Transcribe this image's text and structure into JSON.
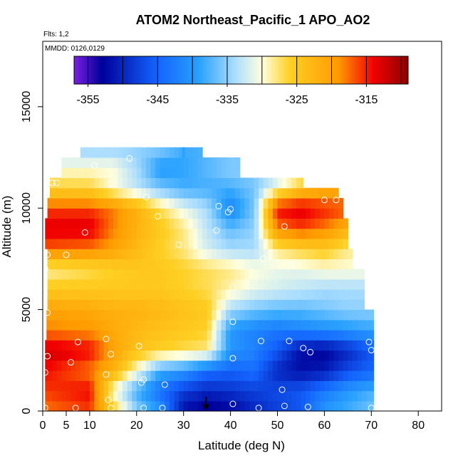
{
  "chart_data": {
    "type": "heatmap",
    "title": "ATOM2 Northeast_Pacific_1 APO_AO2",
    "flights_label": "Flts: 1,2",
    "dates_label": "MMDD: 0126,0129",
    "xlabel": "Latitude (deg N)",
    "ylabel": "Altitude (m)",
    "xlim": [
      0,
      85
    ],
    "ylim": [
      0,
      18500
    ],
    "x_ticks": [
      0,
      5,
      10,
      20,
      30,
      40,
      50,
      60,
      70,
      80
    ],
    "y_ticks": [
      0,
      5000,
      10000,
      15000
    ],
    "colorbar": {
      "range": [
        -357,
        -309
      ],
      "ticks": [
        -355,
        -345,
        -335,
        -325,
        -315
      ]
    },
    "colors": {
      "c0": "#7a1fe0",
      "c1": "#00009a",
      "c2": "#1464ff",
      "c3": "#2aa2ff",
      "c4": "#a8dcff",
      "c5": "#ffffe0",
      "c6": "#ffd024",
      "c7": "#ff9a00",
      "c8": "#f20000",
      "c9": "#8b0000"
    },
    "envelope": [
      {
        "alt": 0,
        "lat_min": 0.5,
        "lat_max": 70.5
      },
      {
        "alt": 3500,
        "lat_min": 0.8,
        "lat_max": 70.5
      },
      {
        "alt": 5000,
        "lat_min": 1.0,
        "lat_max": 68.5
      },
      {
        "alt": 7000,
        "lat_min": 1.0,
        "lat_max": 66.0
      },
      {
        "alt": 8000,
        "lat_min": 0.5,
        "lat_max": 65.0
      },
      {
        "alt": 9500,
        "lat_min": 1.0,
        "lat_max": 64.0
      },
      {
        "alt": 10500,
        "lat_min": 1.5,
        "lat_max": 63.0
      },
      {
        "alt": 11000,
        "lat_min": 1.5,
        "lat_max": 55.5
      },
      {
        "alt": 11500,
        "lat_min": 4.0,
        "lat_max": 42.0
      },
      {
        "alt": 12500,
        "lat_min": 8.0,
        "lat_max": 34.0
      }
    ],
    "value_field": [
      {
        "alt": 0,
        "lats": [
          0,
          10,
          15,
          20,
          25,
          30,
          35,
          40,
          45,
          50,
          55,
          60,
          65,
          70
        ],
        "vals": [
          -318,
          -316,
          -325,
          -335,
          -340,
          -352,
          -354,
          -353,
          -350,
          -348,
          -346,
          -340,
          -338,
          -336
        ]
      },
      {
        "alt": 1000,
        "lats": [
          0,
          10,
          15,
          20,
          25,
          30,
          35,
          40,
          45,
          50,
          55,
          60,
          65,
          70
        ],
        "vals": [
          -316,
          -314,
          -330,
          -338,
          -344,
          -348,
          -350,
          -349,
          -348,
          -347,
          -346,
          -343,
          -340,
          -338
        ]
      },
      {
        "alt": 2000,
        "lats": [
          0,
          10,
          15,
          20,
          25,
          30,
          35,
          40,
          45,
          50,
          55,
          60,
          65,
          70
        ],
        "vals": [
          -314,
          -318,
          -322,
          -330,
          -338,
          -340,
          -344,
          -345,
          -344,
          -350,
          -352,
          -351,
          -347,
          -345
        ]
      },
      {
        "alt": 3000,
        "lats": [
          0,
          10,
          15,
          20,
          25,
          30,
          35,
          40,
          45,
          50,
          55,
          60,
          65,
          70
        ],
        "vals": [
          -312,
          -314,
          -320,
          -324,
          -326,
          -327,
          -328,
          -340,
          -342,
          -346,
          -352,
          -353,
          -350,
          -346
        ]
      },
      {
        "alt": 4000,
        "lats": [
          0,
          10,
          15,
          20,
          25,
          30,
          35,
          40,
          45,
          50,
          55,
          60,
          65,
          70
        ],
        "vals": [
          -318,
          -319,
          -321,
          -323,
          -324,
          -325,
          -326,
          -340,
          -342,
          -343,
          -342,
          -341,
          -340,
          -339
        ]
      },
      {
        "alt": 5000,
        "lats": [
          0,
          10,
          15,
          20,
          25,
          30,
          35,
          40,
          45,
          50,
          55,
          60,
          65,
          70
        ],
        "vals": [
          -320,
          -321,
          -322,
          -322,
          -323,
          -324,
          -325,
          -334,
          -336,
          -337,
          -337,
          -336,
          -335,
          -335
        ]
      },
      {
        "alt": 6000,
        "lats": [
          0,
          10,
          15,
          20,
          25,
          30,
          35,
          40,
          45,
          50,
          55,
          60,
          65,
          70
        ],
        "vals": [
          -325,
          -325,
          -325,
          -325,
          -325,
          -326,
          -327,
          -329,
          -331,
          -332,
          -333,
          -334,
          -334,
          -334
        ]
      },
      {
        "alt": 7000,
        "lats": [
          0,
          10,
          15,
          20,
          25,
          30,
          35,
          40,
          45,
          50,
          55,
          60,
          65,
          70
        ],
        "vals": [
          -329,
          -327,
          -326,
          -325,
          -325,
          -326,
          -327,
          -328,
          -330,
          -331,
          -331,
          -330,
          -330,
          -330
        ]
      },
      {
        "alt": 8000,
        "lats": [
          0,
          10,
          15,
          20,
          25,
          30,
          35,
          40,
          45,
          50,
          55,
          60,
          65,
          70
        ],
        "vals": [
          -317,
          -318,
          -320,
          -323,
          -326,
          -328,
          -332,
          -334,
          -334,
          -328,
          -326,
          -325,
          -328,
          -328
        ]
      },
      {
        "alt": 9000,
        "lats": [
          0,
          10,
          15,
          20,
          25,
          30,
          35,
          40,
          45,
          50,
          55,
          60,
          65,
          70
        ],
        "vals": [
          -313,
          -313,
          -318,
          -322,
          -325,
          -328,
          -333,
          -337,
          -335,
          -318,
          -316,
          -318,
          -322,
          -322
        ]
      },
      {
        "alt": 10000,
        "lats": [
          0,
          10,
          15,
          20,
          25,
          30,
          35,
          40,
          45,
          50,
          55,
          60,
          65,
          70
        ],
        "vals": [
          -316,
          -316,
          -318,
          -322,
          -327,
          -331,
          -334,
          -342,
          -336,
          -314,
          -313,
          -315,
          -316,
          -316
        ]
      },
      {
        "alt": 11000,
        "lats": [
          0,
          10,
          15,
          20,
          25,
          30,
          35,
          40,
          45,
          50,
          55,
          60,
          65,
          70
        ],
        "vals": [
          -326,
          -326,
          -330,
          -333,
          -336,
          -338,
          -338,
          -338,
          -336,
          -330,
          -324,
          -322,
          -322,
          -322
        ]
      },
      {
        "alt": 12000,
        "lats": [
          0,
          10,
          15,
          20,
          25,
          30,
          35,
          40,
          45,
          50,
          55,
          60,
          65,
          70
        ],
        "vals": [
          -330,
          -330,
          -330,
          -334,
          -340,
          -339,
          -337,
          -335,
          -335,
          -335,
          -335,
          -335,
          -335,
          -335
        ]
      },
      {
        "alt": 13000,
        "lats": [
          0,
          10,
          15,
          20,
          25,
          30,
          35,
          40,
          45,
          50,
          55,
          60,
          65,
          70
        ],
        "vals": [
          -335,
          -335,
          -335,
          -335,
          -335,
          -338,
          -338,
          -338,
          -338,
          -338,
          -338,
          -338,
          -338,
          -338
        ]
      }
    ],
    "samples": [
      {
        "lat": 0.5,
        "alt": 150
      },
      {
        "lat": 7.0,
        "alt": 150
      },
      {
        "lat": 14.5,
        "alt": 150
      },
      {
        "lat": 21.5,
        "alt": 150
      },
      {
        "lat": 25.5,
        "alt": 150
      },
      {
        "lat": 40.5,
        "alt": 350
      },
      {
        "lat": 46.0,
        "alt": 150
      },
      {
        "lat": 51.5,
        "alt": 250
      },
      {
        "lat": 56.5,
        "alt": 200
      },
      {
        "lat": 70.0,
        "alt": 150
      },
      {
        "lat": 0.5,
        "alt": 1900
      },
      {
        "lat": 13.5,
        "alt": 1800
      },
      {
        "lat": 21.0,
        "alt": 1400
      },
      {
        "lat": 21.5,
        "alt": 1550
      },
      {
        "lat": 26.0,
        "alt": 1300
      },
      {
        "lat": 51.0,
        "alt": 1050
      },
      {
        "lat": 14.0,
        "alt": 550
      },
      {
        "lat": 1.0,
        "alt": 2700
      },
      {
        "lat": 6.0,
        "alt": 2400
      },
      {
        "lat": 14.5,
        "alt": 2800
      },
      {
        "lat": 20.5,
        "alt": 3200
      },
      {
        "lat": 40.5,
        "alt": 2600
      },
      {
        "lat": 7.5,
        "alt": 3400
      },
      {
        "lat": 13.5,
        "alt": 3550
      },
      {
        "lat": 46.5,
        "alt": 3450
      },
      {
        "lat": 52.5,
        "alt": 3450
      },
      {
        "lat": 55.5,
        "alt": 3100
      },
      {
        "lat": 57.0,
        "alt": 2900
      },
      {
        "lat": 69.5,
        "alt": 3400
      },
      {
        "lat": 70.0,
        "alt": 3000
      },
      {
        "lat": 40.5,
        "alt": 4400
      },
      {
        "lat": 1.0,
        "alt": 4850
      },
      {
        "lat": 40.5,
        "alt": 6100
      },
      {
        "lat": 0.5,
        "alt": 7000
      },
      {
        "lat": 1.0,
        "alt": 7700
      },
      {
        "lat": 5.0,
        "alt": 7700
      },
      {
        "lat": 47.0,
        "alt": 7500
      },
      {
        "lat": 53.0,
        "alt": 7200
      },
      {
        "lat": 29.0,
        "alt": 8200
      },
      {
        "lat": 9.0,
        "alt": 8800
      },
      {
        "lat": 37.0,
        "alt": 8900
      },
      {
        "lat": 24.5,
        "alt": 9600
      },
      {
        "lat": 51.5,
        "alt": 9100
      },
      {
        "lat": 39.5,
        "alt": 9800
      },
      {
        "lat": 40.0,
        "alt": 9950
      },
      {
        "lat": 37.5,
        "alt": 10100
      },
      {
        "lat": 22.0,
        "alt": 10550
      },
      {
        "lat": 60.0,
        "alt": 10400
      },
      {
        "lat": 62.5,
        "alt": 10400
      },
      {
        "lat": 2.0,
        "alt": 11250
      },
      {
        "lat": 3.0,
        "alt": 11250
      },
      {
        "lat": 14.5,
        "alt": 11200
      },
      {
        "lat": 11.0,
        "alt": 12100
      },
      {
        "lat": 18.5,
        "alt": 12450
      }
    ],
    "flight_tower": {
      "lat": 30.0,
      "alt_bottom": 12500,
      "alt_top": 13000
    },
    "arrow": {
      "lat": 34.8,
      "alt_top": 700,
      "alt_bottom": 0
    },
    "grid": false,
    "legend": "none"
  }
}
